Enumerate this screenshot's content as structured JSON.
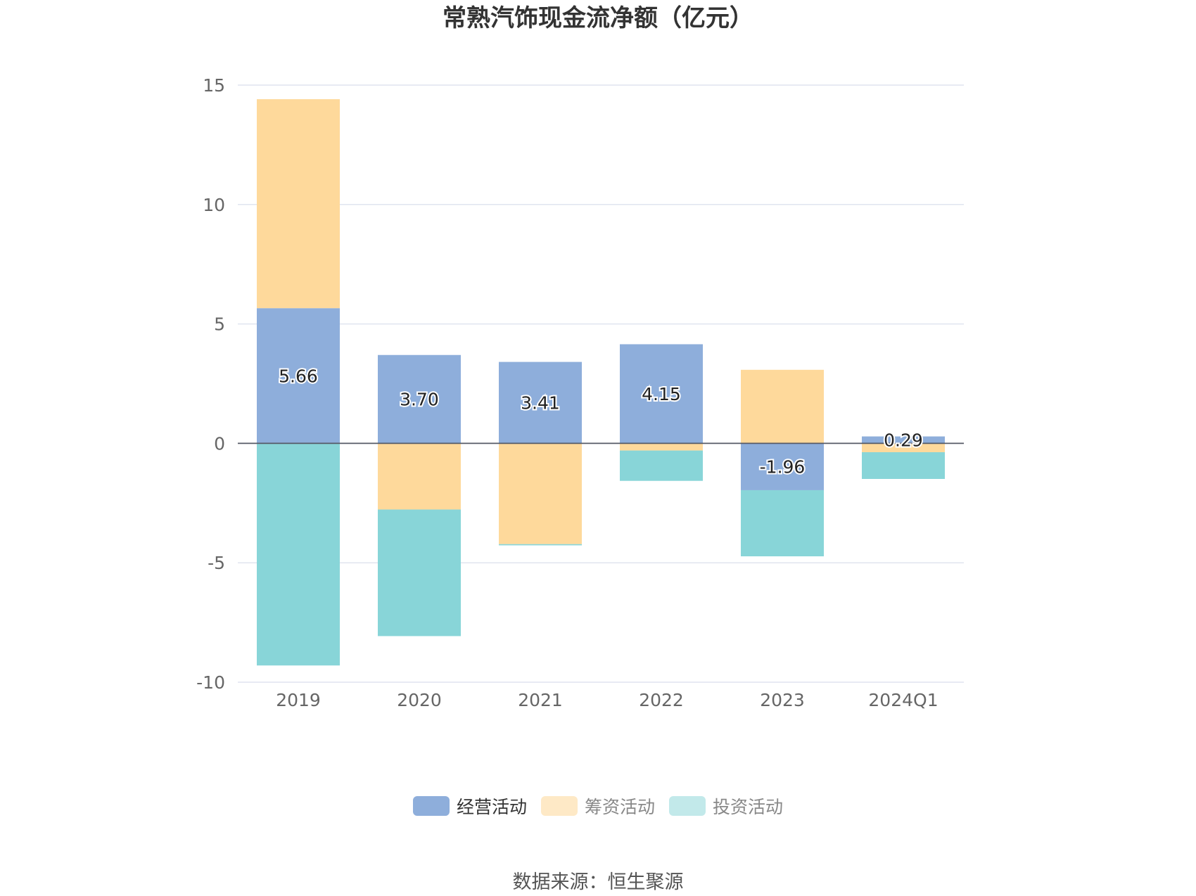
{
  "chart_data": {
    "type": "bar",
    "stacked": true,
    "title": "常熟汽饰现金流净额（亿元）",
    "categories": [
      "2019",
      "2020",
      "2021",
      "2022",
      "2023",
      "2024Q1"
    ],
    "ylim": [
      -10,
      15
    ],
    "yticks": [
      15,
      10,
      5,
      0,
      -5,
      -10
    ],
    "grid": true,
    "legend_position": "bottom",
    "series": [
      {
        "name": "经营活动",
        "color": "#8eaedb",
        "values": [
          5.66,
          3.7,
          3.41,
          4.15,
          -1.96,
          0.29
        ],
        "labels": [
          "5.66",
          "3.70",
          "3.41",
          "4.15",
          "-1.96",
          "0.29"
        ]
      },
      {
        "name": "筹资活动",
        "color": "#fed99b",
        "values": [
          8.75,
          -2.77,
          -4.22,
          -0.3,
          3.08,
          -0.37
        ]
      },
      {
        "name": "投资活动",
        "color": "#88d5d8",
        "values": [
          -9.3,
          -5.3,
          -0.05,
          -1.27,
          -2.77,
          -1.12
        ]
      }
    ]
  },
  "legend": [
    {
      "label": "经营活动",
      "color": "#8eaedb"
    },
    {
      "label": "筹资活动",
      "color": "#fee9c6"
    },
    {
      "label": "投资活动",
      "color": "#c2e9ea"
    }
  ],
  "source": "数据来源：恒生聚源"
}
